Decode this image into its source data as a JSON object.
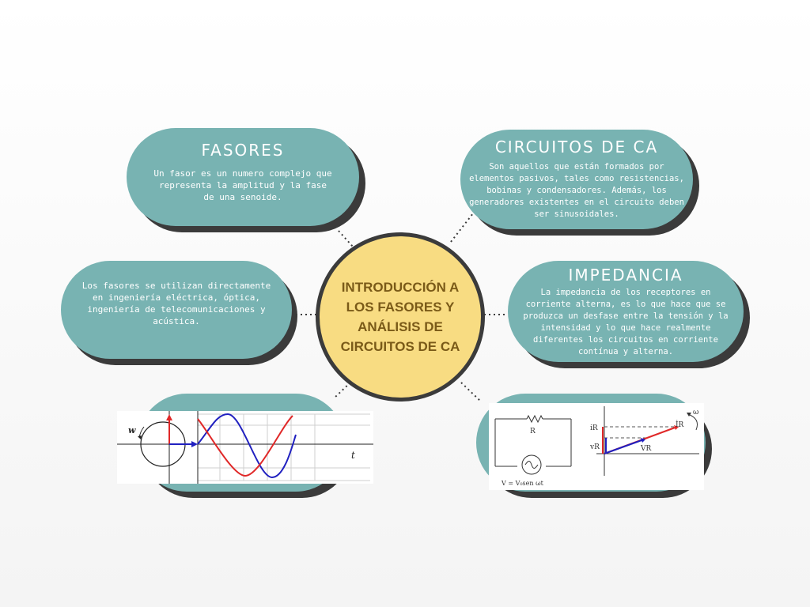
{
  "center": {
    "title": "INTRODUCCIÓN A LOS FASORES Y ANÁLISIS DE CIRCUITOS DE CA"
  },
  "nodes": {
    "fasores": {
      "title": "FASORES",
      "text": "Un fasor es un numero complejo que representa la amplitud y la fase de una senoide."
    },
    "circuitos": {
      "title": "CIRCUITOS DE CA",
      "text": "Son aquellos que están formados por elementos pasivos, tales como resistencias, bobinas y condensadores. Además, los generadores existentes en el circuito deben ser sinusoidales."
    },
    "aplicaciones": {
      "text": "Los fasores se utilizan directamente en ingeniería eléctrica, óptica, ingeniería de telecomunicaciones y acústica."
    },
    "impedancia": {
      "title": "IMPEDANCIA",
      "text": "La impedancia de los receptores en corriente alterna, es lo que hace que se produzca un desfase entre la tensión y la intensidad y lo que hace realmente diferentes los circuitos en corriente contínua y alterna."
    }
  },
  "phasor_figure": {
    "omega_label": "w",
    "axis_label": "t"
  },
  "circuit_figure": {
    "resistor_label": "R",
    "source_label": "V = V₀sen ωt",
    "current_label": "İR",
    "voltage_label": "VR",
    "axis_current": "iR",
    "axis_voltage": "vR",
    "omega_label": "ω"
  },
  "colors": {
    "pill": "#78b3b2",
    "shadow": "#3b3b3b",
    "center": "#f8dc82",
    "center_text": "#7a5a18",
    "wave_red": "#e02828",
    "wave_blue": "#2020c0"
  }
}
